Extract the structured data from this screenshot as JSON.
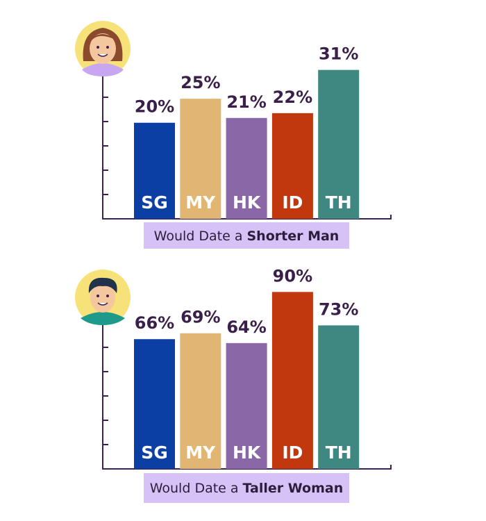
{
  "chart_data": [
    {
      "type": "bar",
      "title": "Would Date a",
      "title_emphasis": "Shorter Man",
      "categories": [
        "SG",
        "MY",
        "HK",
        "ID",
        "TH"
      ],
      "values": [
        20,
        25,
        21,
        22,
        31
      ],
      "value_labels": [
        "20%",
        "25%",
        "21%",
        "22%",
        "31%"
      ],
      "colors": [
        "#0b3fa3",
        "#e1b673",
        "#8a68a8",
        "#c1380f",
        "#3f8882"
      ],
      "ylim": [
        0,
        35
      ]
    },
    {
      "type": "bar",
      "title": "Would Date a",
      "title_emphasis": "Taller Woman",
      "categories": [
        "SG",
        "MY",
        "HK",
        "ID",
        "TH"
      ],
      "values": [
        66,
        69,
        64,
        90,
        73
      ],
      "value_labels": [
        "66%",
        "69%",
        "64%",
        "90%",
        "73%"
      ],
      "colors": [
        "#0b3fa3",
        "#e1b673",
        "#8a68a8",
        "#c1380f",
        "#3f8882"
      ],
      "ylim": [
        0,
        100
      ]
    }
  ]
}
